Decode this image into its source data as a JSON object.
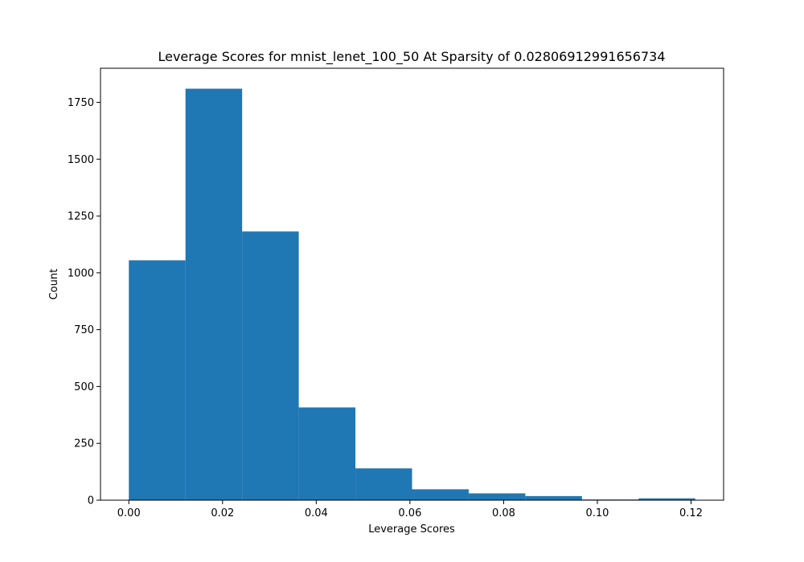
{
  "chart_data": {
    "type": "bar",
    "title": "Leverage Scores for mnist_lenet_100_50 At Sparsity of 0.02806912991656734",
    "xlabel": "Leverage Scores",
    "ylabel": "Count",
    "bin_edges": [
      0.0,
      0.01209,
      0.02418,
      0.03627,
      0.04836,
      0.06045,
      0.07254,
      0.08463,
      0.09672,
      0.10881,
      0.1209
    ],
    "values": [
      1055,
      1810,
      1182,
      408,
      140,
      48,
      30,
      18,
      3,
      8
    ],
    "xlim": [
      -0.00605,
      0.12695
    ],
    "ylim": [
      0,
      1900
    ],
    "xticks": [
      0.0,
      0.02,
      0.04,
      0.06,
      0.08,
      0.1,
      0.12
    ],
    "xtick_labels": [
      "0.00",
      "0.02",
      "0.04",
      "0.06",
      "0.08",
      "0.10",
      "0.12"
    ],
    "yticks": [
      0,
      250,
      500,
      750,
      1000,
      1250,
      1500,
      1750
    ],
    "ytick_labels": [
      "0",
      "250",
      "500",
      "750",
      "1000",
      "1250",
      "1500",
      "1750"
    ],
    "bar_color": "#1f77b4",
    "grid": false,
    "legend": "none"
  }
}
